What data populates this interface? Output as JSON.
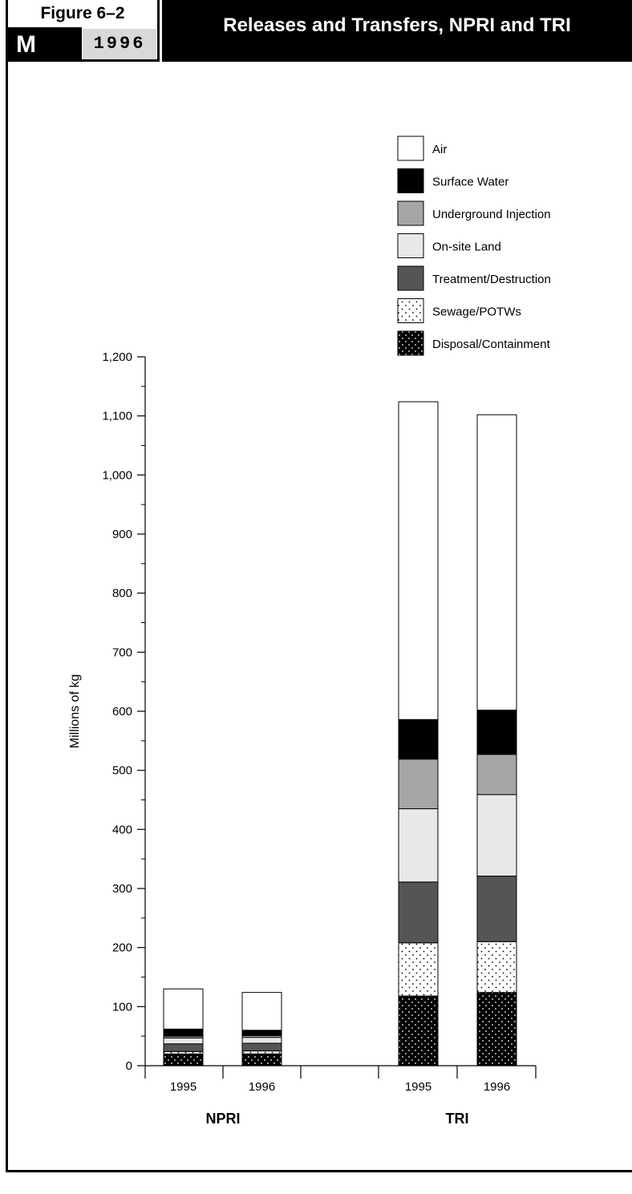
{
  "header": {
    "figure_label": "Figure 6–2",
    "badge_letter": "M",
    "badge_year": "1996",
    "title": "Releases and Transfers, NPRI and TRI"
  },
  "colors": {
    "ink": "#000000",
    "badge_year_bg": "#d9d9d9",
    "air": "#ffffff",
    "surface_water": "#000000",
    "underground_injection": "#a6a6a6",
    "onsite_land": "#e8e8e8",
    "treatment_destruction": "#555555",
    "sewage_potws": "#ffffff",
    "disposal_containment": "#000000"
  },
  "chart_data": {
    "type": "bar",
    "stacked": true,
    "title": "Releases and Transfers, NPRI and TRI",
    "ylabel": "Millions of kg",
    "ylim": [
      0,
      1200
    ],
    "yticks": [
      0,
      100,
      200,
      300,
      400,
      500,
      600,
      700,
      800,
      900,
      1000,
      1100,
      1200
    ],
    "ytick_labels": [
      "0",
      "100",
      "200",
      "300",
      "400",
      "500",
      "600",
      "700",
      "800",
      "900",
      "1,000",
      "1,100",
      "1,200"
    ],
    "grid": false,
    "legend_position": "top-right",
    "groups": [
      "NPRI",
      "TRI"
    ],
    "categories": [
      "1995",
      "1996",
      "1995",
      "1996"
    ],
    "category_group": [
      "NPRI",
      "NPRI",
      "TRI",
      "TRI"
    ],
    "series": [
      {
        "name": "Disposal/Containment",
        "pattern": "dots-on-black",
        "values": [
          20,
          20,
          118,
          124
        ]
      },
      {
        "name": "Sewage/POTWs",
        "pattern": "dots-on-white",
        "values": [
          4,
          5,
          90,
          86
        ]
      },
      {
        "name": "Treatment/Destruction",
        "pattern": "solid",
        "values": [
          13,
          13,
          103,
          111
        ]
      },
      {
        "name": "On-site Land",
        "pattern": "solid",
        "values": [
          10,
          10,
          124,
          138
        ]
      },
      {
        "name": "Underground Injection",
        "pattern": "solid",
        "values": [
          3,
          3,
          84,
          68
        ]
      },
      {
        "name": "Surface Water",
        "pattern": "solid",
        "values": [
          12,
          9,
          67,
          75
        ]
      },
      {
        "name": "Air",
        "pattern": "solid",
        "values": [
          68,
          64,
          538,
          500
        ]
      }
    ],
    "legend_order": [
      "Air",
      "Surface Water",
      "Underground Injection",
      "On-site Land",
      "Treatment/Destruction",
      "Sewage/POTWs",
      "Disposal/Containment"
    ]
  }
}
